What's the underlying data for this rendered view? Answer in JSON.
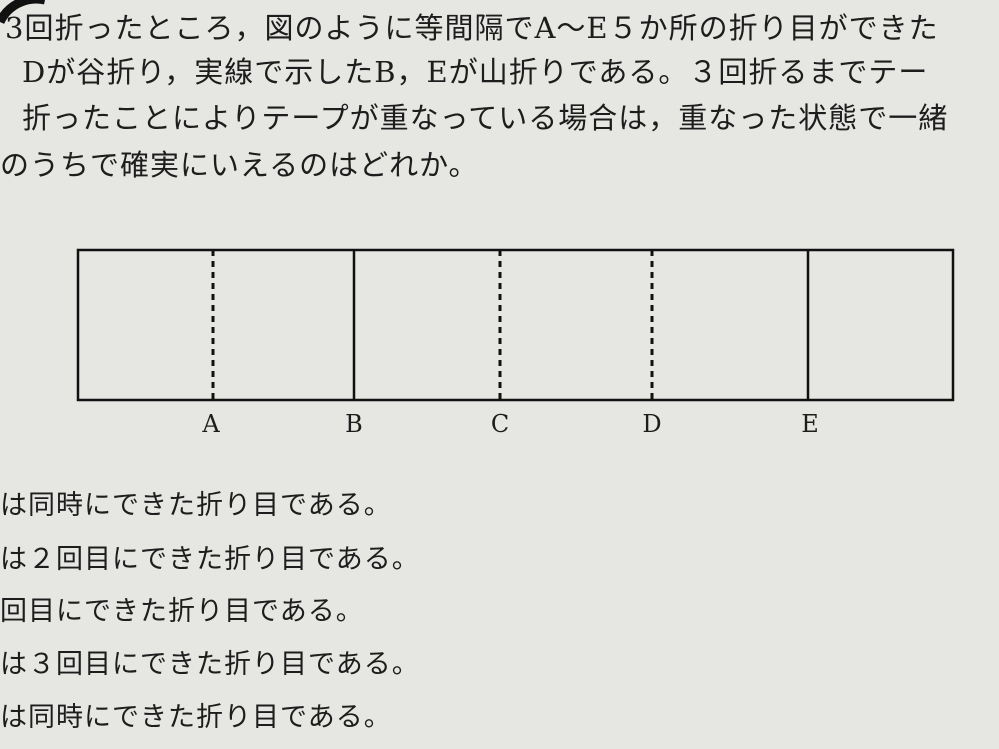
{
  "question": {
    "lines": [
      "3回折ったところ，図のように等間隔でA～E５か所の折り目ができた",
      "Dが谷折り，実線で示したB，Eが山折りである。３回折るまでテー",
      "折ったことによりテープが重なっている場合は，重なった状態で一緒",
      "のうちで確実にいえるのはどれか。"
    ]
  },
  "diagram": {
    "fold_labels": [
      "A",
      "B",
      "C",
      "D",
      "E"
    ]
  },
  "options": [
    "は同時にできた折り目である。",
    "は２回目にできた折り目である。",
    "回目にできた折り目である。",
    "は３回目にできた折り目である。",
    "は同時にできた折り目である。"
  ]
}
